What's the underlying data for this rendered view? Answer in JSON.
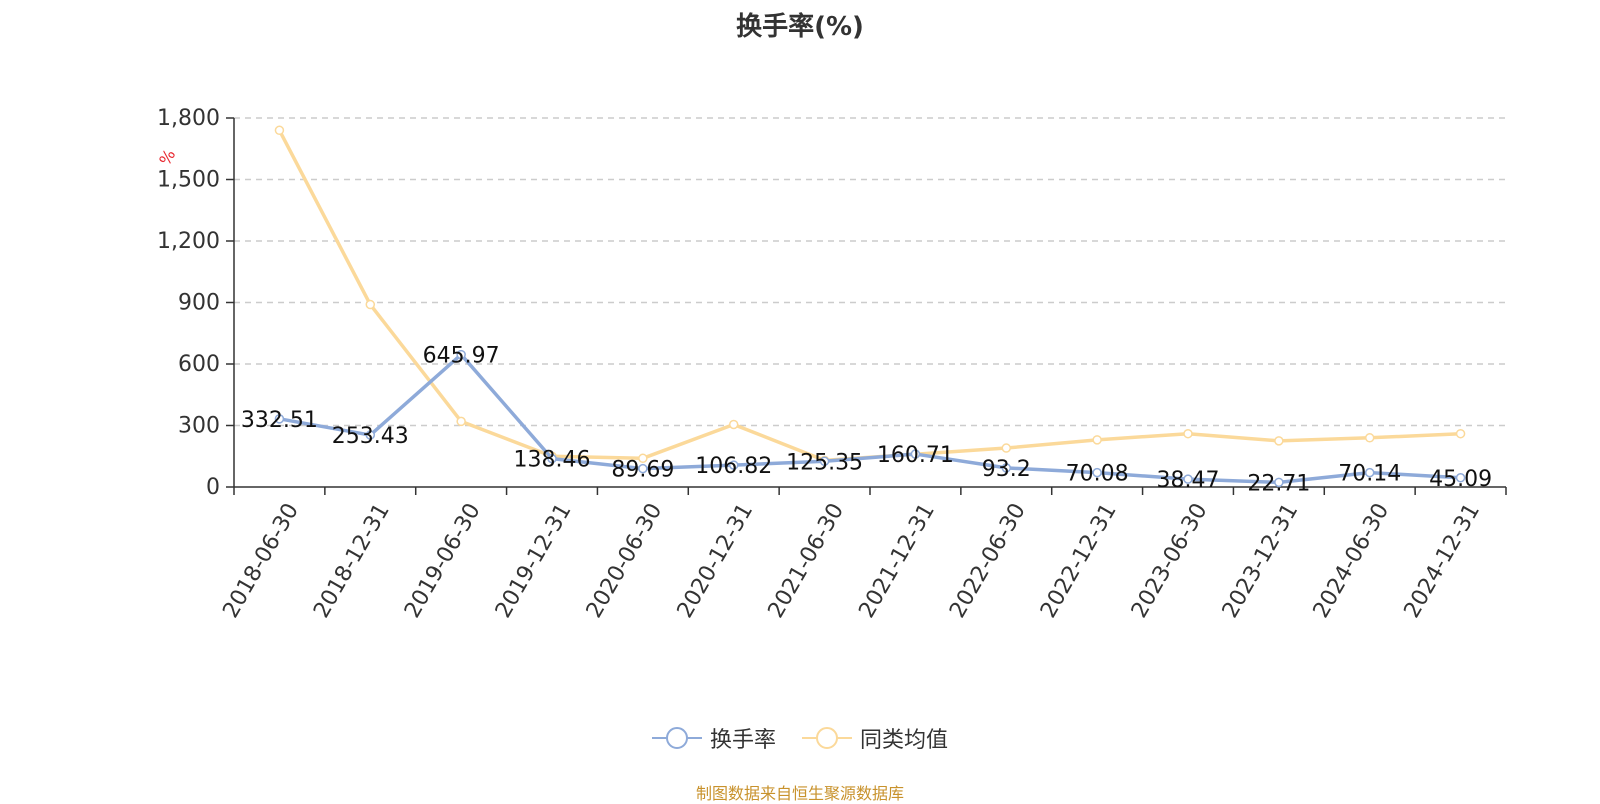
{
  "chart_title": "换手率(%)",
  "unit_label": "%",
  "source_note": "制图数据来自恒生聚源数据库",
  "colors": {
    "series_1": "#8eaad9",
    "series_2": "#fbd99a",
    "unit": "#e8262e"
  },
  "chart_data": {
    "type": "line",
    "title": "换手率(%)",
    "xlabel": "",
    "ylabel": "%",
    "ylim": [
      0,
      1800
    ],
    "yticks": [
      0,
      300,
      600,
      900,
      1200,
      1500,
      1800
    ],
    "grid": true,
    "legend_position": "bottom",
    "categories": [
      "2018-06-30",
      "2018-12-31",
      "2019-06-30",
      "2019-12-31",
      "2020-06-30",
      "2020-12-31",
      "2021-06-30",
      "2021-12-31",
      "2022-06-30",
      "2022-12-31",
      "2023-06-30",
      "2023-12-31",
      "2024-06-30",
      "2024-12-31"
    ],
    "series": [
      {
        "name": "换手率",
        "values": [
          332.51,
          253.43,
          645.97,
          138.46,
          89.69,
          106.82,
          125.35,
          160.71,
          93.2,
          70.08,
          38.47,
          22.71,
          70.14,
          45.09
        ],
        "data_labels": [
          "332.51",
          "253.43",
          "645.97",
          "138.46",
          "89.69",
          "106.82",
          "125.35",
          "160.71",
          "93.2",
          "70.08",
          "38.47",
          "22.71",
          "70.14",
          "45.09"
        ]
      },
      {
        "name": "同类均值",
        "values": [
          1740,
          890,
          320,
          150,
          140,
          305,
          130,
          160,
          190,
          230,
          260,
          225,
          240,
          260
        ]
      }
    ]
  }
}
